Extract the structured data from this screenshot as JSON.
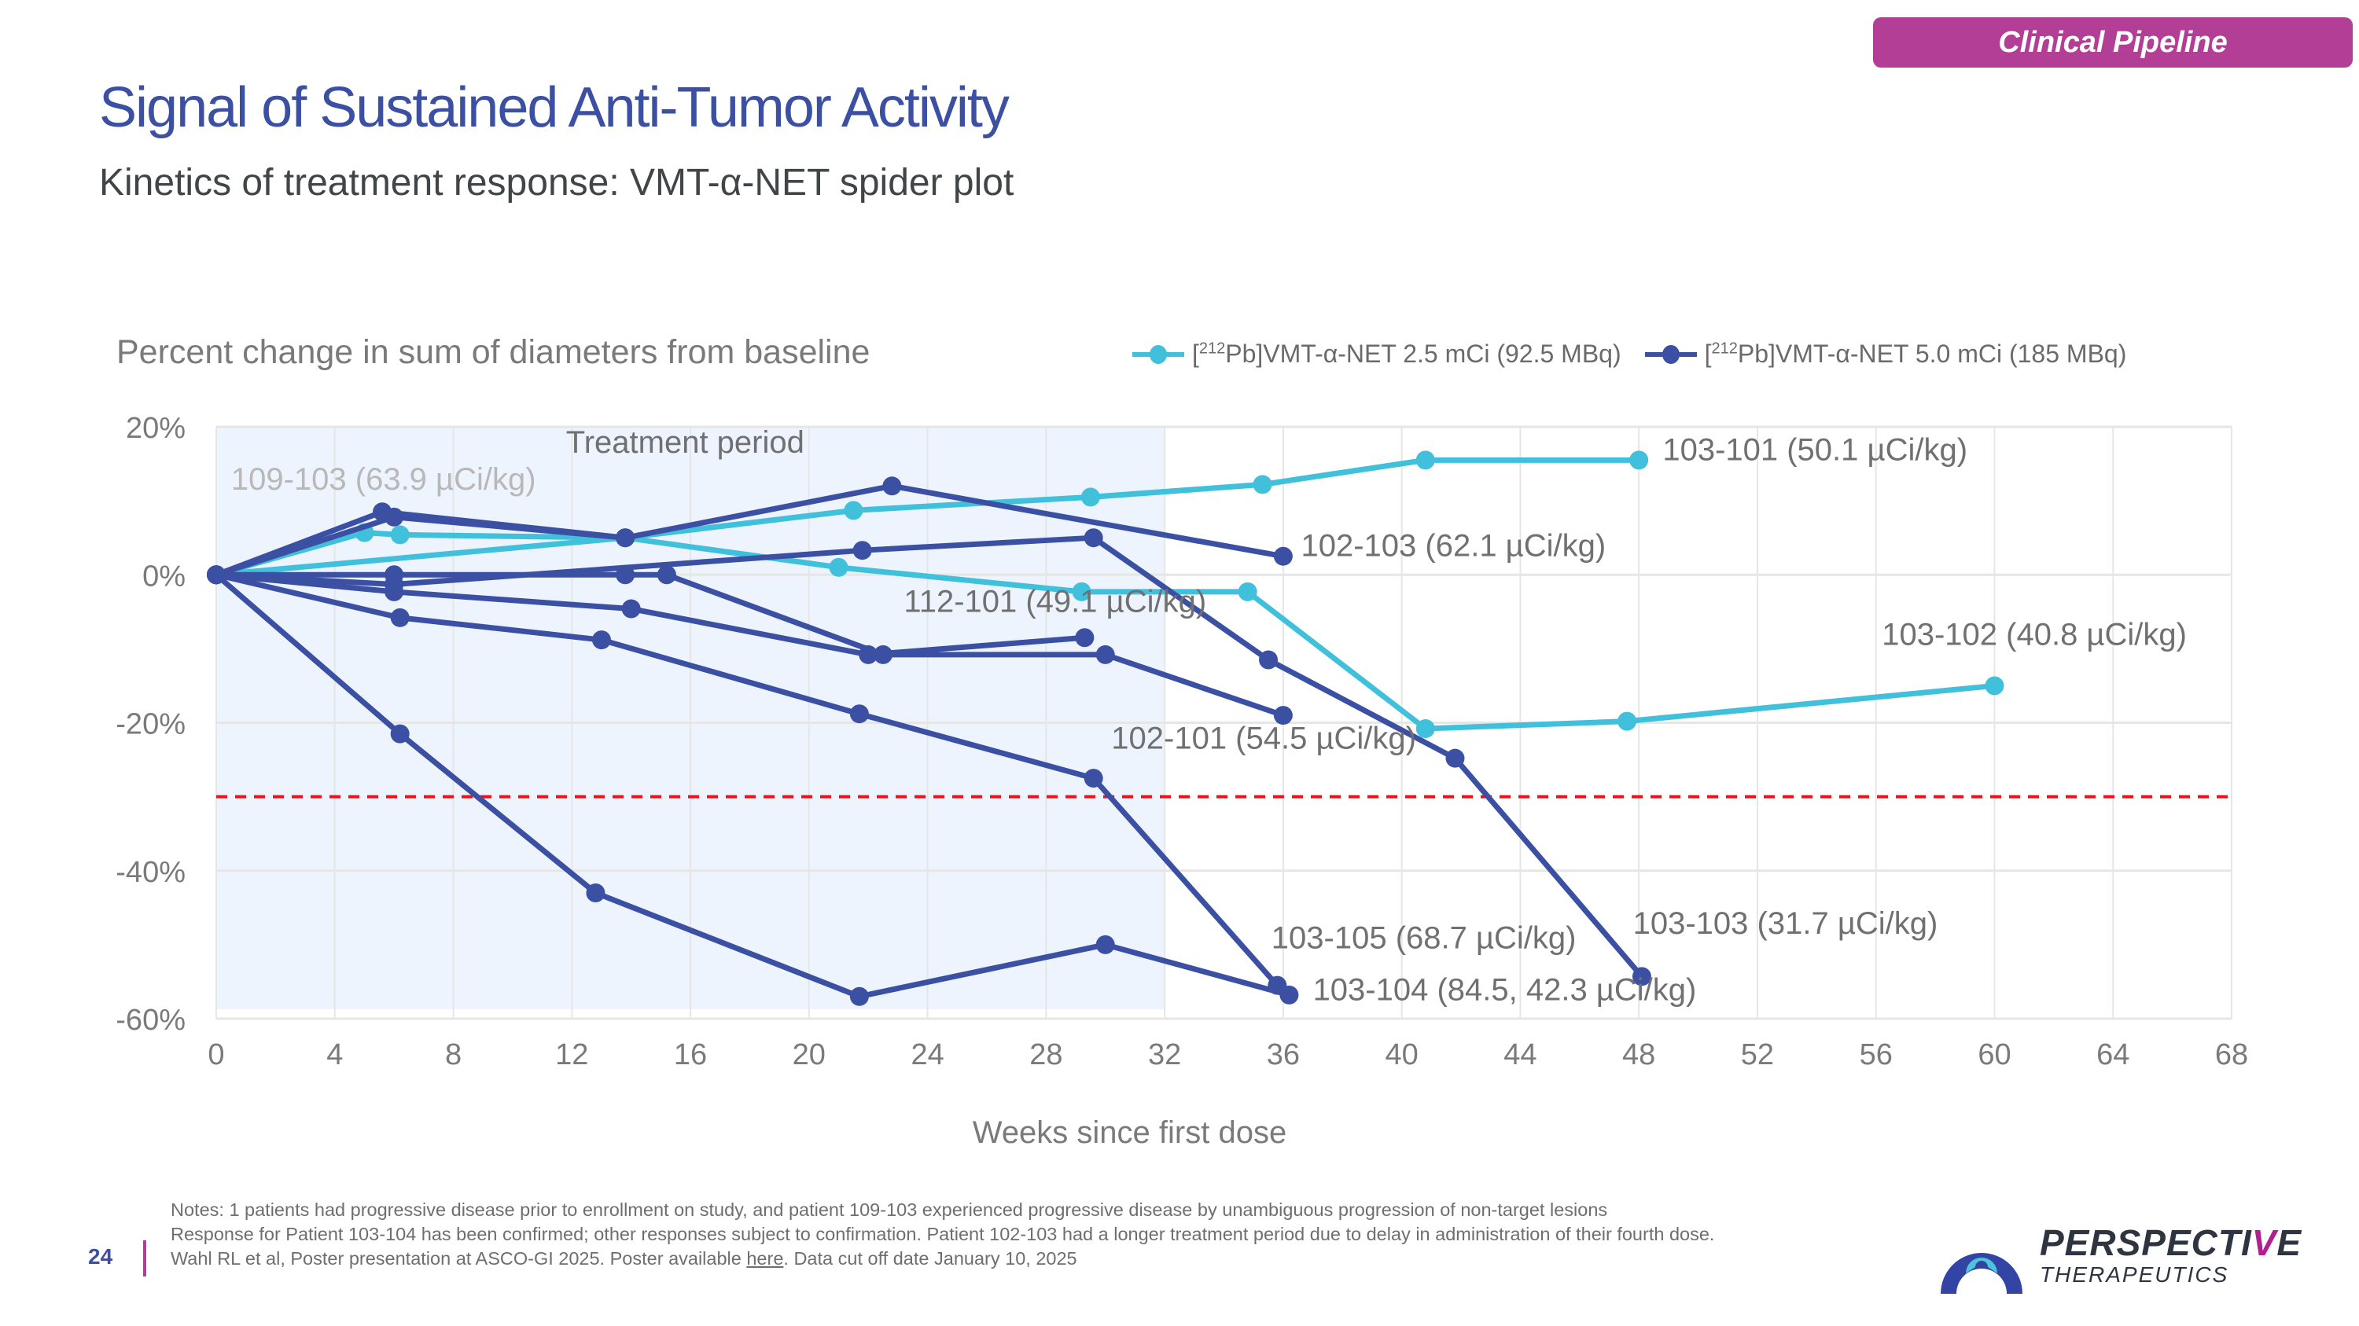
{
  "header": {
    "badge": "Clinical Pipeline",
    "title": "Signal of Sustained Anti-Tumor Activity",
    "subtitle": "Kinetics of treatment response: VMT-α-NET spider plot"
  },
  "colors": {
    "low_dose": "#41c0dc",
    "high_dose": "#3b50a3",
    "threshold": "#e8131b",
    "treatment_band": "#edf4fd",
    "badge": "#b33e96"
  },
  "legend": {
    "items": [
      {
        "prefix": "[",
        "sup": "212",
        "text": "Pb]VMT-α-NET 2.5 mCi (92.5 MBq)",
        "color": "#41c0dc"
      },
      {
        "prefix": "[",
        "sup": "212",
        "text": "Pb]VMT-α-NET 5.0 mCi (185 MBq)",
        "color": "#3b50a3"
      }
    ]
  },
  "chart_data": {
    "type": "line",
    "title": "",
    "ylabel": "Percent change in sum of diameters from baseline",
    "xlabel": "Weeks since first dose",
    "xlim": [
      0,
      68
    ],
    "ylim": [
      -60,
      20
    ],
    "xticks": [
      0,
      4,
      8,
      12,
      16,
      20,
      24,
      28,
      32,
      36,
      40,
      44,
      48,
      52,
      56,
      60,
      64,
      68
    ],
    "yticks": [
      20,
      0,
      -20,
      -40,
      -60
    ],
    "ytick_labels": [
      "20%",
      "0%",
      "-20%",
      "-40%",
      "-60%"
    ],
    "grid": true,
    "legend_position": "top-right",
    "threshold_line": {
      "y": -30,
      "style": "dashed"
    },
    "treatment_period": {
      "x_start": 0,
      "x_end": 32,
      "label": "Treatment period"
    },
    "series": [
      {
        "name": "103-101 (50.1 µCi/kg)",
        "group": "2.5 mCi",
        "x": [
          0,
          13.8,
          21.5,
          29.5,
          35.3,
          40.8,
          48
        ],
        "y": [
          0,
          5,
          8.7,
          10.5,
          12.2,
          15.5,
          15.5
        ]
      },
      {
        "name": "103-102 (40.8 µCi/kg)",
        "group": "2.5 mCi",
        "x": [
          0,
          5,
          6.2,
          13.8,
          21,
          29.2,
          34.8,
          40.8,
          47.6,
          60
        ],
        "y": [
          0,
          5.7,
          5.4,
          5,
          1,
          -2.3,
          -2.3,
          -20.8,
          -19.8,
          -15
        ]
      },
      {
        "name": "102-103 (62.1 µCi/kg)",
        "group": "5.0 mCi",
        "x": [
          0,
          5.6,
          13.8,
          22.8,
          36
        ],
        "y": [
          0,
          8.5,
          5,
          12,
          2.5
        ]
      },
      {
        "name": "109-103 (63.9 µCi/kg)",
        "group": "5.0 mCi",
        "x": [
          0,
          6,
          13.8
        ],
        "y": [
          0,
          7.8,
          5
        ]
      },
      {
        "name": "102-101 (54.5 µCi/kg)",
        "group": "5.0 mCi",
        "x": [
          0,
          6,
          13.8,
          15.2,
          22.5,
          30,
          36
        ],
        "y": [
          0,
          0,
          0,
          0,
          -10.8,
          -10.8,
          -19
        ]
      },
      {
        "name": "103-103 (31.7 µCi/kg)",
        "group": "5.0 mCi",
        "x": [
          0,
          6,
          21.8,
          29.6,
          35.5,
          41.8,
          48.1
        ],
        "y": [
          0,
          -1.3,
          3.3,
          5,
          -11.5,
          -24.8,
          -54.3
        ]
      },
      {
        "name": "112-101 (49.1 µCi/kg)",
        "group": "5.0 mCi",
        "x": [
          0,
          6,
          14,
          22,
          29.3
        ],
        "y": [
          0,
          -2.3,
          -4.6,
          -10.8,
          -8.5
        ]
      },
      {
        "name": "103-105 (68.7 µCi/kg)",
        "group": "5.0 mCi",
        "x": [
          0,
          6.2,
          13,
          21.7,
          29.6,
          35.8
        ],
        "y": [
          0,
          -5.8,
          -8.8,
          -18.8,
          -27.5,
          -55.5
        ]
      },
      {
        "name": "103-104 (84.5, 42.3 µCi/kg)",
        "group": "5.0 mCi",
        "x": [
          0,
          6.2,
          12.8,
          21.7,
          30,
          36.2
        ],
        "y": [
          0,
          -21.5,
          -43,
          -57,
          -50,
          -56.8
        ]
      }
    ],
    "annotations": [
      {
        "text": "109-103 (63.9 µCi/kg)",
        "x": 0.5,
        "y": 11.5,
        "muted": true
      },
      {
        "text": "Treatment period",
        "x": 11.8,
        "y": 16.5
      },
      {
        "text": "103-101 (50.1 µCi/kg)",
        "x": 48.8,
        "y": 15.5
      },
      {
        "text": "102-103 (62.1 µCi/kg)",
        "x": 36.6,
        "y": 2.5
      },
      {
        "text": "112-101 (49.1 µCi/kg)",
        "x": 23.2,
        "y": -5
      },
      {
        "text": "103-102 (40.8 µCi/kg)",
        "x": 56.2,
        "y": -9.5
      },
      {
        "text": "102-101 (54.5 µCi/kg)",
        "x": 30.2,
        "y": -23.5
      },
      {
        "text": "103-105 (68.7 µCi/kg)",
        "x": 35.6,
        "y": -50.5
      },
      {
        "text": "103-103 (31.7 µCi/kg)",
        "x": 47.8,
        "y": -48.5
      },
      {
        "text": "103-104 (84.5, 42.3 µCi/kg)",
        "x": 37,
        "y": -57.5
      }
    ]
  },
  "footer": {
    "page_number": "24",
    "notes": [
      "Notes: 1 patients had progressive disease prior to enrollment on study, and patient 109-103 experienced progressive disease by unambiguous progression of non-target lesions",
      "Response for Patient 103-104 has been confirmed; other responses subject to confirmation. Patient 102-103 had a longer treatment period due to delay in administration of their fourth dose."
    ],
    "citation_prefix": "Wahl RL et al, Poster presentation at ASCO-GI 2025. Poster available ",
    "citation_link": "here",
    "citation_suffix": ". Data cut off date January 10, 2025",
    "logo_word_main": "PERSPECTI",
    "logo_word_accent": "V",
    "logo_word_end": "E",
    "logo_sub": "THERAPEUTICS"
  }
}
